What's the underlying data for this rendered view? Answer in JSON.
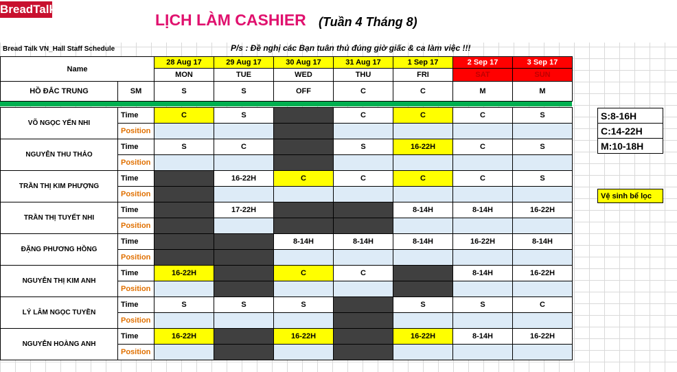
{
  "brand": {
    "logo_text": "BreadTalk"
  },
  "title": "LỊCH LÀM CASHIER",
  "subtitle": "(Tuần 4 Tháng 8)",
  "company": "Bread Talk VN_Hall Staff  Schedule",
  "note": "P/s : Đề nghị các Bạn tuân thủ đúng giờ giấc & ca làm việc !!!",
  "name_header": "Name",
  "days": [
    {
      "date": "28 Aug 17",
      "dow": "MON",
      "weekend": false
    },
    {
      "date": "29 Aug 17",
      "dow": "TUE",
      "weekend": false
    },
    {
      "date": "30 Aug 17",
      "dow": "WED",
      "weekend": false
    },
    {
      "date": "31 Aug 17",
      "dow": "THU",
      "weekend": false
    },
    {
      "date": "1 Sep 17",
      "dow": "FRI",
      "weekend": false
    },
    {
      "date": "2 Sep 17",
      "dow": "SAT",
      "weekend": true
    },
    {
      "date": "3 Sep 17",
      "dow": "SUN",
      "weekend": true
    }
  ],
  "manager": {
    "name": "HỒ ĐẮC TRUNG",
    "role": "SM",
    "shifts": [
      "S",
      "S",
      "OFF",
      "C",
      "C",
      "M",
      "M"
    ]
  },
  "row_labels": {
    "time": "Time",
    "position": "Position"
  },
  "staff": [
    {
      "name": "VÕ NGỌC YẾN NHI",
      "time": [
        {
          "v": "C",
          "hl": true
        },
        {
          "v": "S"
        },
        {
          "off": true
        },
        {
          "v": "C"
        },
        {
          "v": "C",
          "hl": true
        },
        {
          "v": "C"
        },
        {
          "v": "S"
        }
      ],
      "pos_off": [
        false,
        false,
        true,
        false,
        false,
        false,
        false
      ]
    },
    {
      "name": "NGUYỄN THU THẢO",
      "time": [
        {
          "v": "S"
        },
        {
          "v": "C"
        },
        {
          "off": true
        },
        {
          "v": "S"
        },
        {
          "v": "16-22H",
          "hl": true
        },
        {
          "v": "C"
        },
        {
          "v": "S"
        }
      ],
      "pos_off": [
        false,
        false,
        true,
        false,
        false,
        false,
        false
      ]
    },
    {
      "name": "TRẦN THỊ KIM PHƯỢNG",
      "time": [
        {
          "off": true
        },
        {
          "v": "16-22H"
        },
        {
          "v": "C",
          "hl": true
        },
        {
          "v": "C"
        },
        {
          "v": "C",
          "hl": true
        },
        {
          "v": "C"
        },
        {
          "v": "S"
        }
      ],
      "pos_off": [
        true,
        false,
        false,
        false,
        false,
        false,
        false
      ]
    },
    {
      "name": "TRẦN THỊ TUYẾT NHI",
      "time": [
        {
          "off": true
        },
        {
          "v": "17-22H"
        },
        {
          "off": true
        },
        {
          "off": true
        },
        {
          "v": "8-14H"
        },
        {
          "v": "8-14H"
        },
        {
          "v": "16-22H"
        }
      ],
      "pos_off": [
        true,
        false,
        true,
        true,
        false,
        false,
        false
      ]
    },
    {
      "name": "ĐẶNG PHƯƠNG HỒNG",
      "time": [
        {
          "off": true
        },
        {
          "off": true
        },
        {
          "v": "8-14H"
        },
        {
          "v": "8-14H"
        },
        {
          "v": "8-14H"
        },
        {
          "v": "16-22H"
        },
        {
          "v": "8-14H"
        }
      ],
      "pos_off": [
        true,
        true,
        false,
        false,
        false,
        false,
        false
      ]
    },
    {
      "name": "NGUYỄN THỊ KIM ANH",
      "time": [
        {
          "v": "16-22H",
          "hl": true
        },
        {
          "off": true
        },
        {
          "v": "C",
          "hl": true
        },
        {
          "v": "C"
        },
        {
          "off": true
        },
        {
          "v": "8-14H"
        },
        {
          "v": "16-22H"
        }
      ],
      "pos_off": [
        false,
        true,
        false,
        false,
        true,
        false,
        false
      ]
    },
    {
      "name": "LÝ LÂM NGỌC TUYỀN",
      "time": [
        {
          "v": "S"
        },
        {
          "v": "S"
        },
        {
          "v": "S"
        },
        {
          "off": true
        },
        {
          "v": "S"
        },
        {
          "v": "S"
        },
        {
          "v": "C"
        }
      ],
      "pos_off": [
        false,
        false,
        false,
        true,
        false,
        false,
        false
      ]
    },
    {
      "name": "NGUYỄN HOÀNG ANH",
      "time": [
        {
          "v": "16-22H",
          "hl": true
        },
        {
          "off": true
        },
        {
          "v": "16-22H",
          "hl": true
        },
        {
          "off": true
        },
        {
          "v": "16-22H",
          "hl": true
        },
        {
          "v": "8-14H"
        },
        {
          "v": "16-22H"
        }
      ],
      "pos_off": [
        false,
        true,
        false,
        true,
        false,
        false,
        false
      ]
    }
  ],
  "legend": [
    "S:8-16H",
    "C:14-22H",
    "M:10-18H"
  ],
  "cleaning_note": "Vệ sinh bể lọc",
  "colors": {
    "title": "#e0116e",
    "highlight": "#ffff00",
    "weekend": "#ff0000",
    "off": "#404040",
    "position_bg": "#ddebf7",
    "divider": "#00b050",
    "logo": "#c8102e"
  }
}
